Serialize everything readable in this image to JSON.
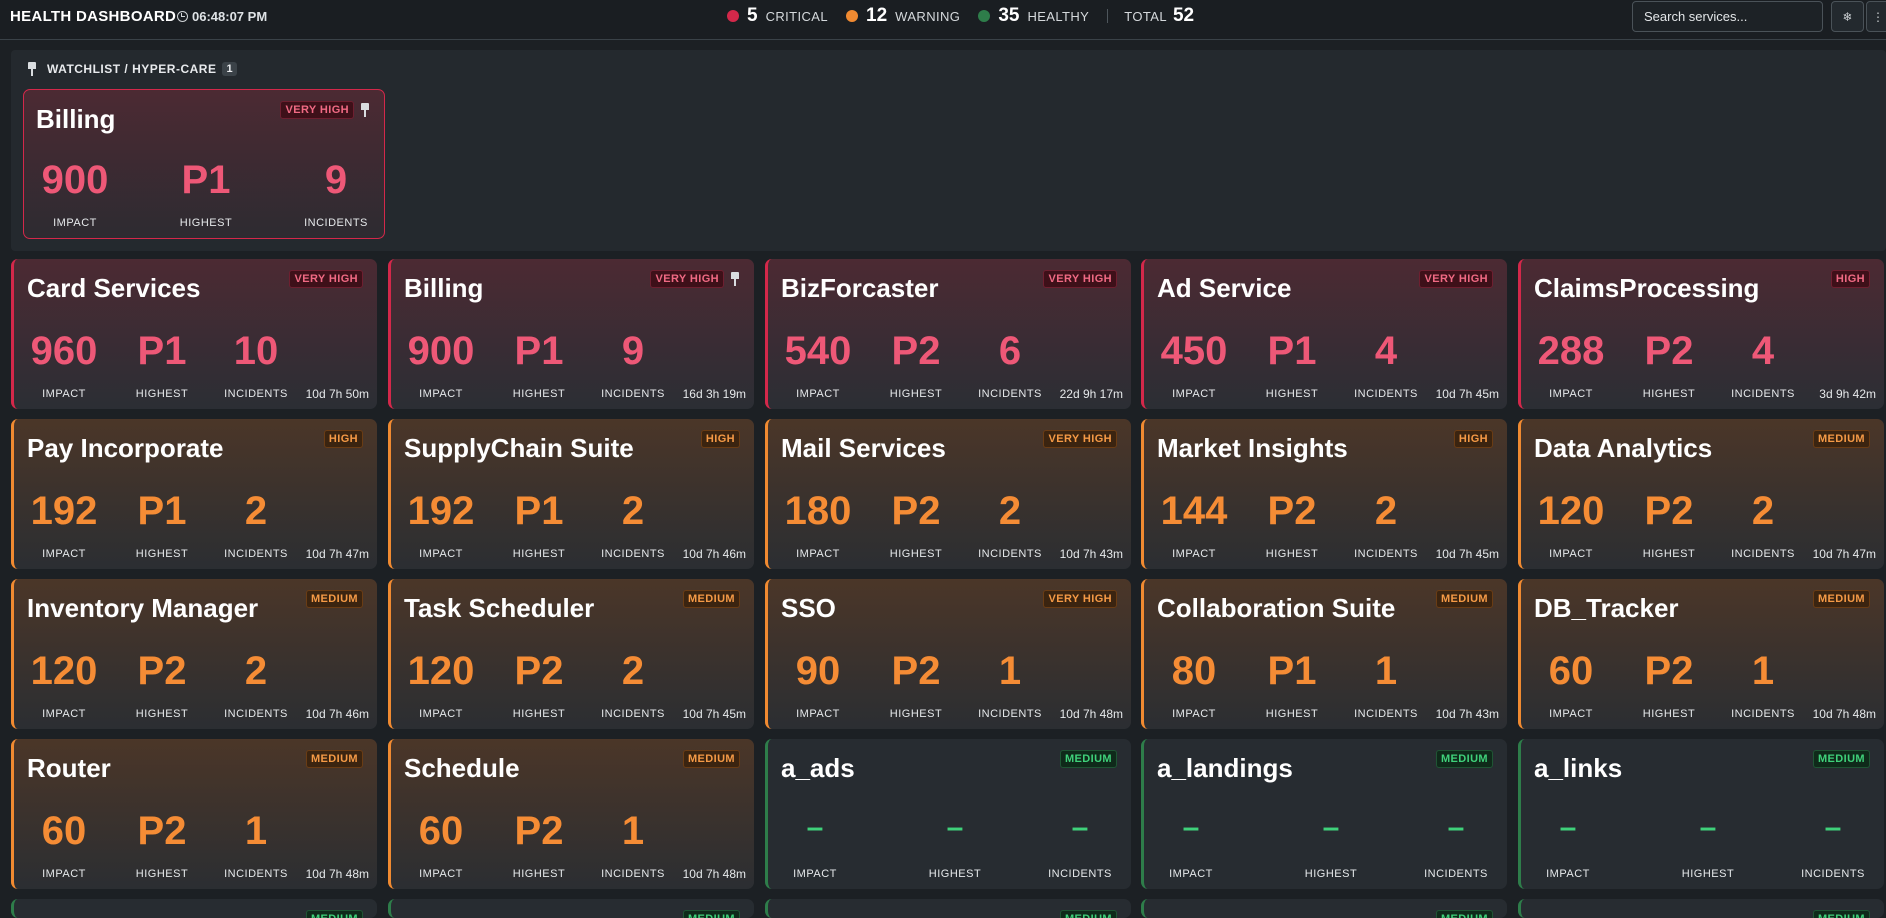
{
  "header": {
    "title": "HEALTH DASHBOARD",
    "clock": "06:48:07 PM",
    "summary": {
      "critical": {
        "count": "5",
        "label": "CRITICAL",
        "color": "#d3284a"
      },
      "warning": {
        "count": "12",
        "label": "WARNING",
        "color": "#f08a31"
      },
      "healthy": {
        "count": "35",
        "label": "HEALTHY",
        "color": "#2e7d4a"
      },
      "total": {
        "label": "TOTAL",
        "count": "52"
      }
    },
    "search_placeholder": "Search services...",
    "icons": [
      "snowflake-icon",
      "more-icon"
    ]
  },
  "watchlist": {
    "title": "WATCHLIST / HYPER-CARE",
    "count": "1",
    "card": {
      "name": "Billing",
      "severity": "VERY HIGH",
      "impact": "900",
      "highest": "P1",
      "incidents": "9",
      "status": "critical",
      "pinned": true
    }
  },
  "labels": {
    "impact": "IMPACT",
    "highest": "HIGHEST",
    "incidents": "INCIDENTS"
  },
  "cards": [
    {
      "name": "Card Services",
      "severity": "VERY HIGH",
      "impact": "960",
      "highest": "P1",
      "incidents": "10",
      "duration": "10d 7h 50m",
      "status": "critical"
    },
    {
      "name": "Billing",
      "severity": "VERY HIGH",
      "impact": "900",
      "highest": "P1",
      "incidents": "9",
      "duration": "16d 3h 19m",
      "status": "critical",
      "pinned": true
    },
    {
      "name": "BizForcaster",
      "severity": "VERY HIGH",
      "impact": "540",
      "highest": "P2",
      "incidents": "6",
      "duration": "22d 9h 17m",
      "status": "critical"
    },
    {
      "name": "Ad Service",
      "severity": "VERY HIGH",
      "impact": "450",
      "highest": "P1",
      "incidents": "4",
      "duration": "10d 7h 45m",
      "status": "critical"
    },
    {
      "name": "ClaimsProcessing",
      "severity": "HIGH",
      "impact": "288",
      "highest": "P2",
      "incidents": "4",
      "duration": "3d 9h 42m",
      "status": "critical"
    },
    {
      "name": "Pay Incorporate",
      "severity": "HIGH",
      "impact": "192",
      "highest": "P1",
      "incidents": "2",
      "duration": "10d 7h 47m",
      "status": "warning"
    },
    {
      "name": "SupplyChain Suite",
      "severity": "HIGH",
      "impact": "192",
      "highest": "P1",
      "incidents": "2",
      "duration": "10d 7h 46m",
      "status": "warning"
    },
    {
      "name": "Mail Services",
      "severity": "VERY HIGH",
      "impact": "180",
      "highest": "P2",
      "incidents": "2",
      "duration": "10d 7h 43m",
      "status": "warning"
    },
    {
      "name": "Market Insights",
      "severity": "HIGH",
      "impact": "144",
      "highest": "P2",
      "incidents": "2",
      "duration": "10d 7h 45m",
      "status": "warning"
    },
    {
      "name": "Data Analytics",
      "severity": "MEDIUM",
      "impact": "120",
      "highest": "P2",
      "incidents": "2",
      "duration": "10d 7h 47m",
      "status": "warning"
    },
    {
      "name": "Inventory Manager",
      "severity": "MEDIUM",
      "impact": "120",
      "highest": "P2",
      "incidents": "2",
      "duration": "10d 7h 46m",
      "status": "warning"
    },
    {
      "name": "Task Scheduler",
      "severity": "MEDIUM",
      "impact": "120",
      "highest": "P2",
      "incidents": "2",
      "duration": "10d 7h 45m",
      "status": "warning"
    },
    {
      "name": "SSO",
      "severity": "VERY HIGH",
      "impact": "90",
      "highest": "P2",
      "incidents": "1",
      "duration": "10d 7h 48m",
      "status": "warning"
    },
    {
      "name": "Collaboration Suite",
      "severity": "MEDIUM",
      "impact": "80",
      "highest": "P1",
      "incidents": "1",
      "duration": "10d 7h 43m",
      "status": "warning"
    },
    {
      "name": "DB_Tracker",
      "severity": "MEDIUM",
      "impact": "60",
      "highest": "P2",
      "incidents": "1",
      "duration": "10d 7h 48m",
      "status": "warning"
    },
    {
      "name": "Router",
      "severity": "MEDIUM",
      "impact": "60",
      "highest": "P2",
      "incidents": "1",
      "duration": "10d 7h 48m",
      "status": "warning"
    },
    {
      "name": "Schedule",
      "severity": "MEDIUM",
      "impact": "60",
      "highest": "P2",
      "incidents": "1",
      "duration": "10d 7h 48m",
      "status": "warning"
    },
    {
      "name": "a_ads",
      "severity": "MEDIUM",
      "impact": "–",
      "highest": "–",
      "incidents": "–",
      "duration": "",
      "status": "healthy"
    },
    {
      "name": "a_landings",
      "severity": "MEDIUM",
      "impact": "–",
      "highest": "–",
      "incidents": "–",
      "duration": "",
      "status": "healthy"
    },
    {
      "name": "a_links",
      "severity": "MEDIUM",
      "impact": "–",
      "highest": "–",
      "incidents": "–",
      "duration": "",
      "status": "healthy"
    }
  ],
  "partial_row": [
    {
      "severity": "MEDIUM",
      "status": "healthy"
    },
    {
      "severity": "MEDIUM",
      "status": "healthy"
    },
    {
      "severity": "MEDIUM",
      "status": "healthy"
    },
    {
      "severity": "MEDIUM",
      "status": "healthy"
    },
    {
      "severity": "MEDIUM",
      "status": "healthy"
    }
  ]
}
